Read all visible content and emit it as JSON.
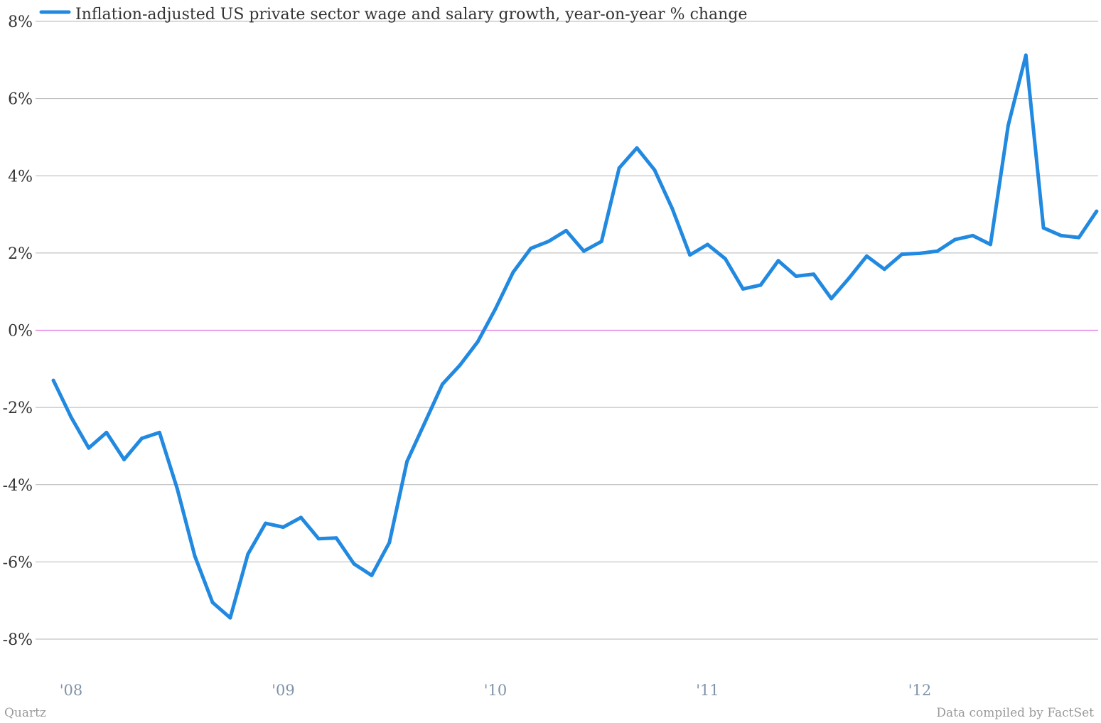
{
  "chart_data": {
    "type": "line",
    "legend": "Inflation-adjusted US private sector wage and salary growth, year-on-year % change",
    "legend_position": "top-left",
    "source_left": "Quartz",
    "source_right": "Data compiled by FactSet",
    "grid": true,
    "ylim": [
      -8,
      8
    ],
    "y_ticks": [
      8,
      6,
      4,
      2,
      0,
      -2,
      -4,
      -6,
      -8
    ],
    "y_tick_labels": [
      "8%",
      "6%",
      "4%",
      "2%",
      "0%",
      "-2%",
      "-4%",
      "-6%",
      "-8%"
    ],
    "x_tick_labels": [
      "'08",
      "'09",
      "'10",
      "'11",
      "'12"
    ],
    "x_tick_years": [
      2008,
      2009,
      2010,
      2011,
      2012
    ],
    "colors": {
      "series": "#2289e0",
      "zero_line": "#e070e0",
      "grid": "#b5b5b5"
    },
    "series": [
      {
        "name": "Inflation-adjusted US private sector wage and salary growth, year-on-year % change",
        "x": [
          "2007-12",
          "2008-01",
          "2008-02",
          "2008-03",
          "2008-04",
          "2008-05",
          "2008-06",
          "2008-07",
          "2008-08",
          "2008-09",
          "2008-10",
          "2008-11",
          "2008-12",
          "2009-01",
          "2009-02",
          "2009-03",
          "2009-04",
          "2009-05",
          "2009-06",
          "2009-07",
          "2009-08",
          "2009-09",
          "2009-10",
          "2009-11",
          "2009-12",
          "2010-01",
          "2010-02",
          "2010-03",
          "2010-04",
          "2010-05",
          "2010-06",
          "2010-07",
          "2010-08",
          "2010-09",
          "2010-10",
          "2010-11",
          "2010-12",
          "2011-01",
          "2011-02",
          "2011-03",
          "2011-04",
          "2011-05",
          "2011-06",
          "2011-07",
          "2011-08",
          "2011-09",
          "2011-10",
          "2011-11",
          "2011-12",
          "2012-01",
          "2012-02",
          "2012-03",
          "2012-04",
          "2012-05",
          "2012-06",
          "2012-07",
          "2012-08",
          "2012-09",
          "2012-10",
          "2012-11"
        ],
        "values": [
          -1.3,
          -2.25,
          -3.05,
          -2.65,
          -3.35,
          -2.8,
          -2.65,
          -4.1,
          -5.85,
          -7.05,
          -7.45,
          -5.8,
          -5.0,
          -5.1,
          -4.85,
          -5.4,
          -5.38,
          -6.05,
          -6.35,
          -5.5,
          -3.4,
          -2.4,
          -1.4,
          -0.9,
          -0.3,
          0.55,
          1.5,
          2.12,
          2.3,
          2.58,
          2.05,
          2.3,
          4.2,
          4.72,
          4.15,
          3.15,
          1.95,
          2.22,
          1.85,
          1.07,
          1.17,
          1.8,
          1.4,
          1.45,
          0.82,
          1.35,
          1.92,
          1.58,
          1.97,
          1.99,
          2.05,
          2.35,
          2.45,
          2.22,
          5.3,
          7.12,
          2.65,
          2.45,
          2.4,
          3.08
        ]
      }
    ]
  }
}
